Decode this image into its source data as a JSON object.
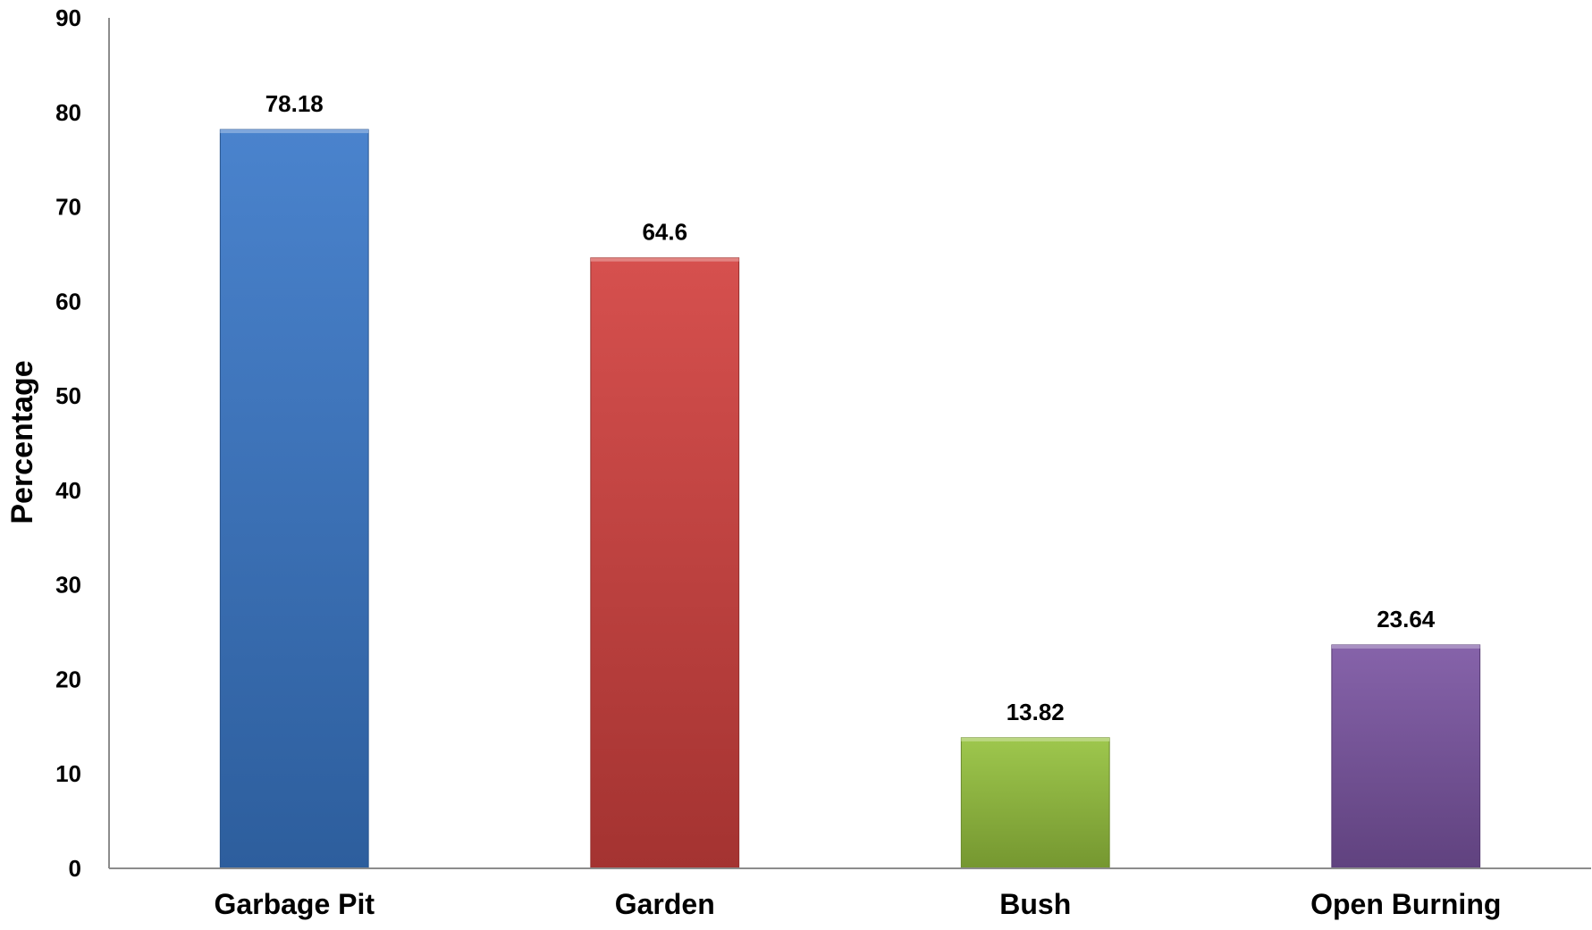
{
  "chart_data": {
    "type": "bar",
    "title": "",
    "xlabel": "",
    "ylabel": "Percentage",
    "ylim": [
      0,
      90
    ],
    "yticks": [
      "0",
      "10",
      "20",
      "30",
      "40",
      "50",
      "60",
      "70",
      "80",
      "90"
    ],
    "categories": [
      "Garbage Pit",
      "Garden",
      "Bush",
      "Open Burning"
    ],
    "values": [
      78.18,
      64.6,
      13.82,
      23.64
    ],
    "data_labels": [
      "78.18",
      "64.6",
      "13.82",
      "23.64"
    ],
    "colors": [
      "#3a78c9",
      "#d2413f",
      "#96c23e",
      "#7b55a3"
    ],
    "grid": false,
    "legend": "none"
  }
}
